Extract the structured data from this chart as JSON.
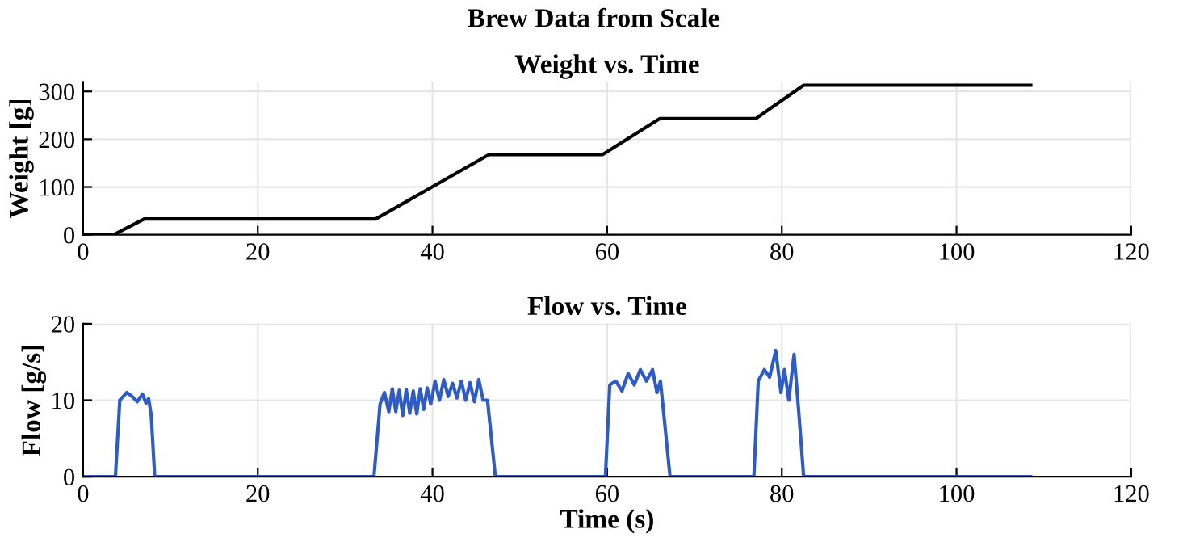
{
  "chart_data": [
    {
      "type": "line",
      "annotations": [
        "Brew Data from Scale"
      ],
      "title": "Weight vs. Time",
      "ylabel": "Weight [g]",
      "xlim": [
        0,
        120
      ],
      "xticks": [
        0,
        20,
        40,
        60,
        80,
        100,
        120
      ],
      "ylim": [
        0,
        320
      ],
      "yticks": [
        0,
        100,
        200,
        300
      ],
      "grid": true,
      "series": [
        {
          "color": "#000000",
          "x": [
            0,
            3.5,
            7,
            33.5,
            46.5,
            59.5,
            66,
            77,
            82.5,
            108.5
          ],
          "values": [
            0,
            0,
            33,
            33,
            168,
            168,
            243,
            243,
            313,
            313
          ]
        }
      ]
    },
    {
      "type": "line",
      "title": "Flow vs. Time",
      "xlabel": "Time (s)",
      "ylabel": "Flow [g/s]",
      "xlim": [
        0,
        120
      ],
      "xticks": [
        0,
        20,
        40,
        60,
        80,
        100,
        120
      ],
      "ylim": [
        0,
        20
      ],
      "yticks": [
        0,
        10,
        20
      ],
      "grid": true,
      "series": [
        {
          "color": "#2e5cc4",
          "x": [
            0,
            3.7,
            4.2,
            5,
            5.6,
            6.2,
            6.8,
            7.2,
            7.5,
            7.8,
            8.2,
            33.3,
            34,
            34.5,
            35,
            35.4,
            35.8,
            36.2,
            36.6,
            37,
            37.4,
            37.8,
            38.2,
            38.6,
            39,
            39.4,
            39.8,
            40.3,
            40.8,
            41.3,
            41.8,
            42.3,
            42.8,
            43.3,
            43.8,
            44.3,
            44.8,
            45.3,
            45.8,
            46.3,
            47.2,
            59.8,
            60.3,
            61,
            61.7,
            62.4,
            63.1,
            63.8,
            64.5,
            65.2,
            65.7,
            66.1,
            66.5,
            67.2,
            76.8,
            77.3,
            78,
            78.6,
            79.3,
            79.9,
            80.3,
            80.8,
            81.4,
            81.9,
            82.5,
            108.5
          ],
          "values": [
            0,
            0,
            10,
            11,
            10.5,
            9.8,
            10.8,
            9.6,
            10.2,
            8,
            0,
            0,
            9.5,
            11,
            8.5,
            11.5,
            8.5,
            11.3,
            8,
            11.4,
            8.3,
            11.2,
            8.2,
            11.5,
            8.8,
            11.6,
            9.5,
            12.5,
            10,
            12.7,
            10.5,
            12.2,
            10.3,
            12.5,
            10,
            12.3,
            9.8,
            12.7,
            10,
            10,
            0,
            0,
            12,
            12.5,
            11.2,
            13.5,
            12,
            14,
            12.5,
            14,
            11,
            12.5,
            8,
            0,
            0,
            12.5,
            14,
            13,
            16.5,
            11,
            14,
            10,
            16,
            9,
            0,
            0
          ]
        }
      ]
    }
  ]
}
